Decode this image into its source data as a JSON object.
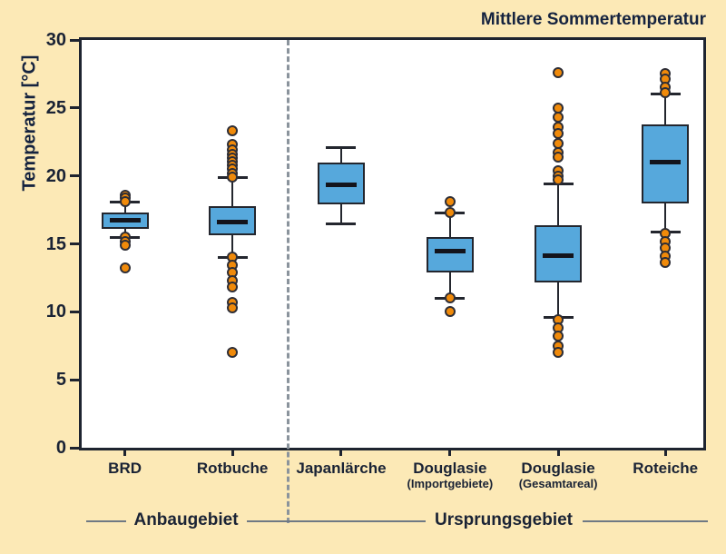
{
  "title": "Mittlere Sommertemperatur",
  "chart_data": {
    "type": "box",
    "title": "Mittlere Sommertemperatur",
    "ylabel": "Temperatur [°C]",
    "xlabel": "",
    "ylim": [
      0,
      30
    ],
    "yticks": [
      0,
      5,
      10,
      15,
      20,
      25,
      30
    ],
    "grid": false,
    "legend": false,
    "group_labels": {
      "left": "Anbaugebiet",
      "right": "Ursprungsgebiet"
    },
    "separator_after_category_index": 1,
    "categories": [
      "BRD",
      "Rotbuche",
      "Japanlärche",
      "Douglasie (Importgebiete)",
      "Douglasie (Gesamtareal)",
      "Roteiche"
    ],
    "series": [
      {
        "label": "BRD",
        "sublabel": "",
        "group": "Anbaugebiet",
        "whisker_low": 15.5,
        "q1": 16.1,
        "median": 16.75,
        "q3": 17.3,
        "whisker_high": 18.1,
        "outliers": [
          18.6,
          18.35,
          18.1,
          15.5,
          15.2,
          14.9,
          13.2
        ]
      },
      {
        "label": "Rotbuche",
        "sublabel": "",
        "group": "Anbaugebiet",
        "whisker_low": 14.0,
        "q1": 15.65,
        "median": 16.6,
        "q3": 17.75,
        "whisker_high": 19.9,
        "outliers": [
          23.3,
          22.3,
          21.9,
          21.6,
          21.3,
          21.05,
          20.8,
          20.5,
          20.2,
          19.9,
          14.0,
          13.4,
          12.9,
          12.3,
          11.85,
          10.7,
          10.3,
          7.0
        ]
      },
      {
        "label": "Japanlärche",
        "sublabel": "",
        "group": "Ursprungsgebiet",
        "whisker_low": 16.5,
        "q1": 17.9,
        "median": 19.35,
        "q3": 21.0,
        "whisker_high": 22.1,
        "outliers": []
      },
      {
        "label": "Douglasie",
        "sublabel": "(Importgebiete)",
        "group": "Ursprungsgebiet",
        "whisker_low": 11.0,
        "q1": 12.9,
        "median": 14.45,
        "q3": 15.5,
        "whisker_high": 17.3,
        "outliers": [
          18.1,
          17.3,
          11.0,
          10.0
        ]
      },
      {
        "label": "Douglasie",
        "sublabel": "(Gesamtareal)",
        "group": "Ursprungsgebiet",
        "whisker_low": 9.6,
        "q1": 12.15,
        "median": 14.1,
        "q3": 16.35,
        "whisker_high": 19.4,
        "outliers": [
          27.6,
          25.0,
          24.3,
          23.6,
          23.1,
          22.4,
          21.7,
          21.4,
          20.4,
          20.0,
          19.7,
          9.4,
          8.8,
          8.2,
          7.5,
          7.0
        ]
      },
      {
        "label": "Roteiche",
        "sublabel": "",
        "group": "Ursprungsgebiet",
        "whisker_low": 15.9,
        "q1": 18.0,
        "median": 21.0,
        "q3": 23.8,
        "whisker_high": 26.0,
        "outliers": [
          27.5,
          27.1,
          26.5,
          26.1,
          15.8,
          15.2,
          14.7,
          14.1,
          13.6
        ]
      }
    ],
    "colors": {
      "background": "#FCE9B6",
      "plot_background": "#FFFFFF",
      "box_fill": "#56A8DC",
      "box_stroke": "#23262E",
      "median": "#13141C",
      "outlier_fill": "#F08A0A",
      "outlier_stroke": "#2E2E36",
      "axis": "#1E2430",
      "separator": "#8A939C",
      "group_line": "#6F7984",
      "text": "#15233F"
    }
  }
}
